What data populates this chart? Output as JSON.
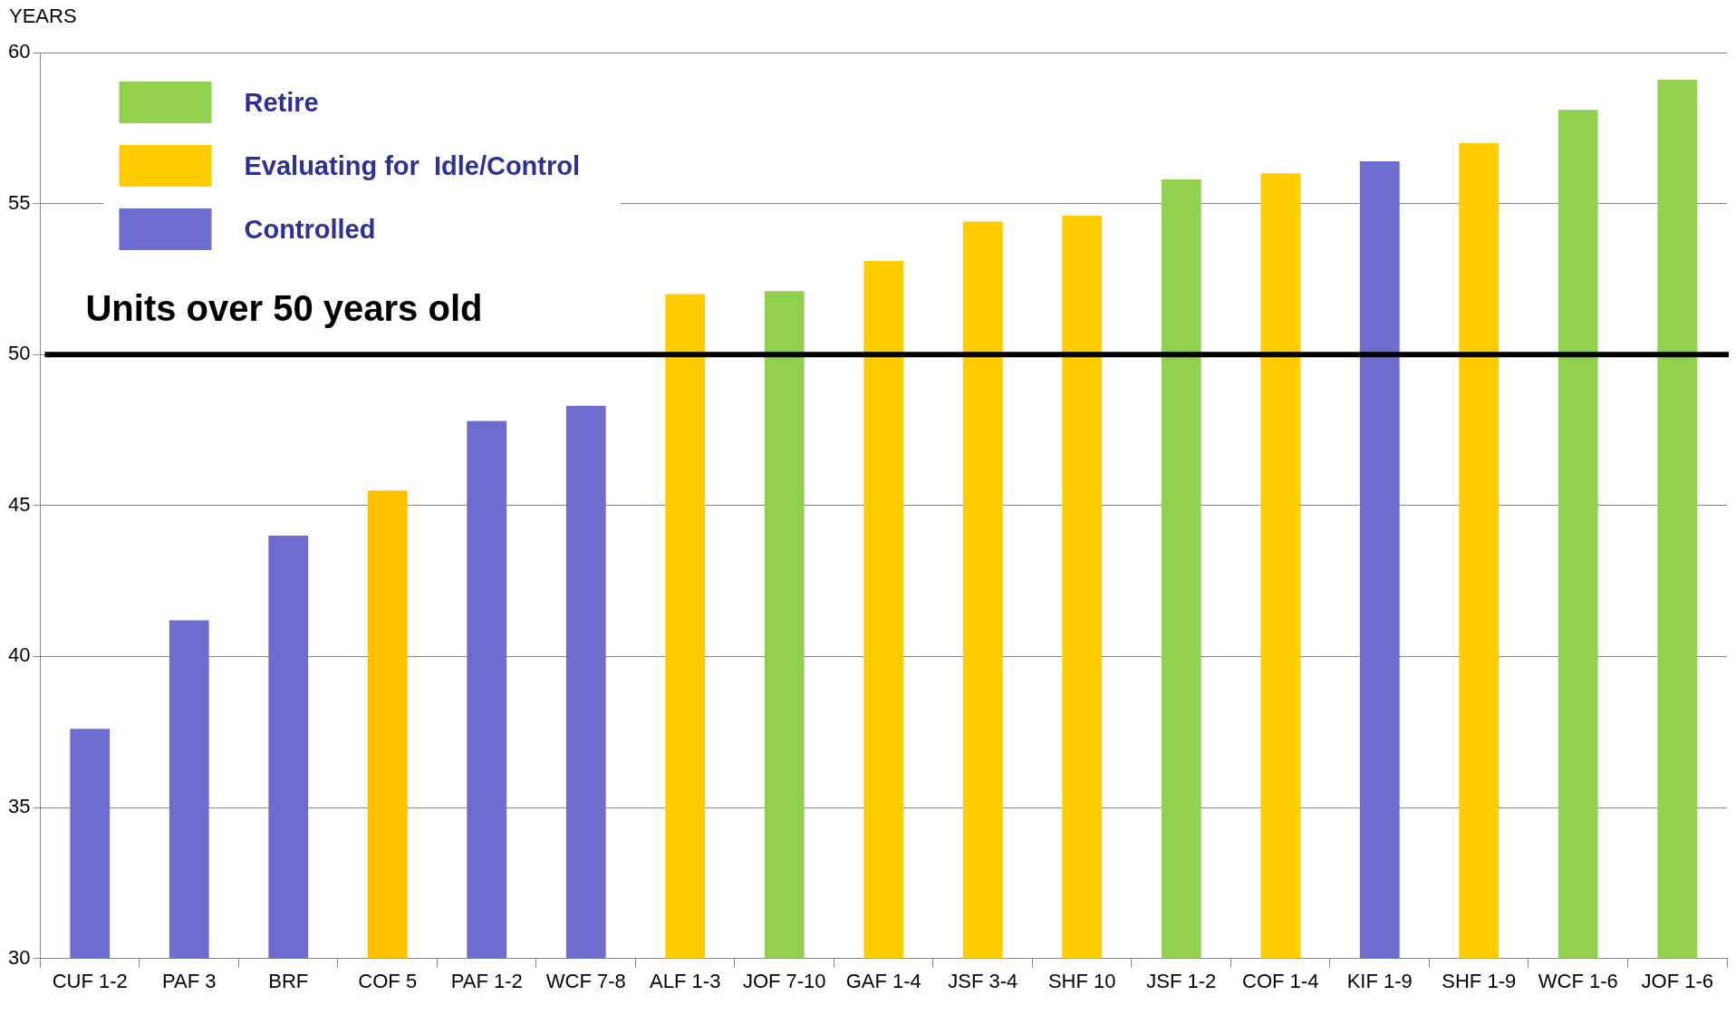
{
  "chart_data": {
    "type": "bar",
    "ylabel": "YEARS",
    "categories": [
      "CUF 1-2",
      "PAF 3",
      "BRF",
      "COF 5",
      "PAF 1-2",
      "WCF 7-8",
      "ALF 1-3",
      "JOF 7-10",
      "GAF 1-4",
      "JSF 3-4",
      "SHF 10",
      "JSF 1-2",
      "COF 1-4",
      "KIF 1-9",
      "SHF 1-9",
      "WCF 1-6",
      "JOF 1-6"
    ],
    "series": [
      {
        "name": "Retire",
        "color": "#92d050",
        "values": [
          null,
          null,
          null,
          null,
          null,
          null,
          null,
          52.1,
          null,
          null,
          null,
          55.8,
          null,
          null,
          null,
          58.1,
          59.1
        ]
      },
      {
        "name": "Evaluating for  Idle/Control",
        "color": "#ffcc00",
        "colors": [
          "#ffcc00",
          "#ffcc00",
          "#ffcc00",
          "#ffc000",
          "#ffcc00",
          "#ffcc00",
          "#ffcc00",
          "#ffcc00",
          "#ffcc00",
          "#ffcc00",
          "#ffcc00",
          "#ffcc00",
          "#ffcc00",
          "#ffcc00",
          "#ffcc00",
          "#ffcc00",
          "#ffcc00"
        ],
        "values": [
          null,
          null,
          null,
          45.5,
          null,
          null,
          52.0,
          null,
          53.1,
          54.4,
          54.6,
          null,
          56.0,
          null,
          57.0,
          null,
          null
        ]
      },
      {
        "name": "Controlled",
        "color": "#6e6dcf",
        "values": [
          37.6,
          41.2,
          44.0,
          null,
          47.8,
          48.3,
          null,
          null,
          null,
          null,
          null,
          null,
          null,
          56.4,
          null,
          null,
          null
        ]
      }
    ],
    "ylim": [
      30,
      60
    ],
    "yticks": [
      30,
      35,
      40,
      45,
      50,
      55,
      60
    ],
    "grid": "y",
    "legend": "top left",
    "ref_lines": [
      {
        "axis": "y",
        "value": 50,
        "label": "Units over 50 years old",
        "color": "#000000"
      }
    ]
  }
}
